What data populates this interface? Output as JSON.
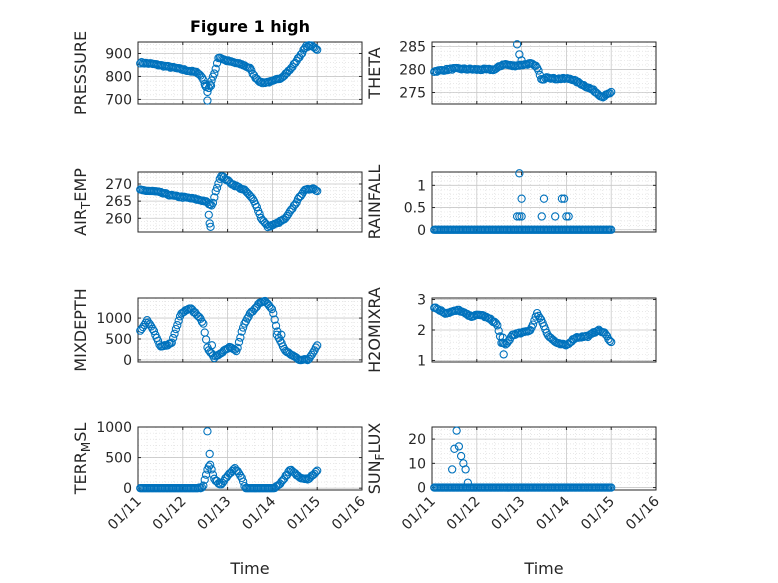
{
  "figure": {
    "title": "Figure 1 high",
    "xlabel": "Time",
    "marker_color": "#0072BD"
  },
  "chart_data": [
    {
      "id": "pressure",
      "type": "scatter",
      "title": "Figure 1 high",
      "ylabel": "PRESSURE",
      "ylim": [
        680,
        950
      ],
      "yticks": [
        700,
        800,
        900
      ],
      "ytick_labels": [
        "700",
        "800",
        "900"
      ],
      "xlim": [
        0,
        5
      ],
      "xticks": [
        0,
        1,
        2,
        3,
        4,
        5
      ],
      "show_xtick_labels": false,
      "knots": [
        [
          0.05,
          860
        ],
        [
          0.3,
          855
        ],
        [
          0.6,
          845
        ],
        [
          0.8,
          838
        ],
        [
          1.0,
          830
        ],
        [
          1.2,
          822
        ],
        [
          1.35,
          815
        ],
        [
          1.45,
          790
        ],
        [
          1.55,
          735
        ],
        [
          1.7,
          810
        ],
        [
          1.8,
          885
        ],
        [
          1.95,
          870
        ],
        [
          2.15,
          860
        ],
        [
          2.35,
          850
        ],
        [
          2.5,
          835
        ],
        [
          2.6,
          800
        ],
        [
          2.75,
          772
        ],
        [
          3.0,
          778
        ],
        [
          3.2,
          795
        ],
        [
          3.4,
          830
        ],
        [
          3.6,
          885
        ],
        [
          3.75,
          930
        ],
        [
          3.85,
          935
        ],
        [
          4.0,
          918
        ]
      ],
      "outliers": [
        [
          1.55,
          695
        ],
        [
          1.5,
          760
        ],
        [
          1.63,
          760
        ]
      ],
      "n": 130
    },
    {
      "id": "theta",
      "type": "scatter",
      "ylabel": "THETA",
      "ylim": [
        272.5,
        286
      ],
      "yticks": [
        275,
        280,
        285
      ],
      "ytick_labels": [
        "275",
        "280",
        "285"
      ],
      "xlim": [
        0,
        5
      ],
      "xticks": [
        0,
        1,
        2,
        3,
        4,
        5
      ],
      "show_xtick_labels": false,
      "knots": [
        [
          0.05,
          279.6
        ],
        [
          0.5,
          280.2
        ],
        [
          1.0,
          280.0
        ],
        [
          1.4,
          280.0
        ],
        [
          1.6,
          281.2
        ],
        [
          1.8,
          280.8
        ],
        [
          2.0,
          281.0
        ],
        [
          2.2,
          281.3
        ],
        [
          2.35,
          280.5
        ],
        [
          2.45,
          277.5
        ],
        [
          2.55,
          278.5
        ],
        [
          2.7,
          278.0
        ],
        [
          3.1,
          278.0
        ],
        [
          3.4,
          276.5
        ],
        [
          3.6,
          275.5
        ],
        [
          3.8,
          274.0
        ],
        [
          4.0,
          275.0
        ]
      ],
      "outliers": [
        [
          1.9,
          285.5
        ],
        [
          1.95,
          283.3
        ],
        [
          2.0,
          282.0
        ]
      ],
      "n": 130
    },
    {
      "id": "air_temp",
      "type": "scatter",
      "ylabel_main": "AIR",
      "ylabel_sub": "T",
      "ylabel_rest": "EMP",
      "ylim": [
        256,
        273.5
      ],
      "yticks": [
        260,
        265,
        270
      ],
      "ytick_labels": [
        "260",
        "265",
        "270"
      ],
      "xlim": [
        0,
        5
      ],
      "xticks": [
        0,
        1,
        2,
        3,
        4,
        5
      ],
      "show_xtick_labels": false,
      "knots": [
        [
          0.05,
          268.2
        ],
        [
          0.4,
          267.8
        ],
        [
          0.8,
          266.5
        ],
        [
          1.2,
          265.8
        ],
        [
          1.5,
          265.0
        ],
        [
          1.65,
          263.5
        ],
        [
          1.75,
          268.5
        ],
        [
          1.85,
          272.5
        ],
        [
          2.1,
          270.0
        ],
        [
          2.4,
          268.0
        ],
        [
          2.6,
          265.0
        ],
        [
          2.75,
          260.0
        ],
        [
          2.9,
          257.5
        ],
        [
          3.1,
          258.5
        ],
        [
          3.3,
          260.0
        ],
        [
          3.5,
          264.0
        ],
        [
          3.7,
          268.0
        ],
        [
          3.9,
          268.8
        ],
        [
          4.0,
          268.0
        ]
      ],
      "outliers": [
        [
          1.6,
          258.5
        ],
        [
          1.62,
          257.5
        ],
        [
          1.58,
          261.0
        ]
      ],
      "n": 130
    },
    {
      "id": "rainfall",
      "type": "scatter",
      "ylabel": "RAINFALL",
      "ylim": [
        -0.05,
        1.3
      ],
      "yticks": [
        0,
        0.5,
        1
      ],
      "ytick_labels": [
        "0",
        "0.5",
        "1"
      ],
      "xlim": [
        0,
        5
      ],
      "xticks": [
        0,
        1,
        2,
        3,
        4,
        5
      ],
      "show_xtick_labels": false,
      "knots": [
        [
          0.05,
          0
        ],
        [
          4.0,
          0
        ]
      ],
      "outliers": [
        [
          1.95,
          1.27
        ],
        [
          1.9,
          0.3
        ],
        [
          1.95,
          0.3
        ],
        [
          2.0,
          0.3
        ],
        [
          2.0,
          0.7
        ],
        [
          2.45,
          0.3
        ],
        [
          2.5,
          0.7
        ],
        [
          2.75,
          0.3
        ],
        [
          2.9,
          0.7
        ],
        [
          2.95,
          0.7
        ],
        [
          3.0,
          0.3
        ],
        [
          3.05,
          0.3
        ]
      ],
      "n": 130
    },
    {
      "id": "mixdepth",
      "type": "scatter",
      "ylabel": "MIXDEPTH",
      "ylim": [
        -50,
        1480
      ],
      "yticks": [
        0,
        500,
        1000
      ],
      "ytick_labels": [
        "0",
        "500",
        "1000"
      ],
      "xlim": [
        0,
        5
      ],
      "xticks": [
        0,
        1,
        2,
        3,
        4,
        5
      ],
      "show_xtick_labels": false,
      "knots": [
        [
          0.05,
          700
        ],
        [
          0.2,
          950
        ],
        [
          0.35,
          700
        ],
        [
          0.5,
          300
        ],
        [
          0.75,
          400
        ],
        [
          0.95,
          1100
        ],
        [
          1.15,
          1250
        ],
        [
          1.3,
          1100
        ],
        [
          1.45,
          900
        ],
        [
          1.55,
          300
        ],
        [
          1.7,
          50
        ],
        [
          1.9,
          200
        ],
        [
          2.05,
          300
        ],
        [
          2.2,
          200
        ],
        [
          2.35,
          800
        ],
        [
          2.5,
          1100
        ],
        [
          2.7,
          1350
        ],
        [
          2.85,
          1400
        ],
        [
          3.0,
          1200
        ],
        [
          3.15,
          500
        ],
        [
          3.3,
          200
        ],
        [
          3.6,
          10
        ],
        [
          3.8,
          0
        ],
        [
          4.0,
          350
        ]
      ],
      "outliers": [
        [
          1.65,
          350
        ],
        [
          3.1,
          600
        ],
        [
          3.2,
          600
        ]
      ],
      "n": 130
    },
    {
      "id": "h2omixra",
      "type": "scatter",
      "ylabel": "H2OMIXRA",
      "ylim": [
        0.95,
        3.05
      ],
      "yticks": [
        1,
        2,
        3
      ],
      "ytick_labels": [
        "1",
        "2",
        "3"
      ],
      "xlim": [
        0,
        5
      ],
      "xticks": [
        0,
        1,
        2,
        3,
        4,
        5
      ],
      "show_xtick_labels": false,
      "knots": [
        [
          0.05,
          2.75
        ],
        [
          0.3,
          2.55
        ],
        [
          0.6,
          2.65
        ],
        [
          0.85,
          2.45
        ],
        [
          1.1,
          2.5
        ],
        [
          1.3,
          2.35
        ],
        [
          1.45,
          2.2
        ],
        [
          1.55,
          1.6
        ],
        [
          1.65,
          1.5
        ],
        [
          1.8,
          1.85
        ],
        [
          2.0,
          1.9
        ],
        [
          2.2,
          2.0
        ],
        [
          2.35,
          2.55
        ],
        [
          2.45,
          2.3
        ],
        [
          2.6,
          1.8
        ],
        [
          2.8,
          1.55
        ],
        [
          3.0,
          1.5
        ],
        [
          3.2,
          1.75
        ],
        [
          3.5,
          1.8
        ],
        [
          3.7,
          2.0
        ],
        [
          3.85,
          1.9
        ],
        [
          4.0,
          1.6
        ]
      ],
      "outliers": [
        [
          1.6,
          1.2
        ],
        [
          1.58,
          1.75
        ]
      ],
      "n": 130
    },
    {
      "id": "terr_msl",
      "type": "scatter",
      "ylabel_main": "TERR",
      "ylabel_sub": "M",
      "ylabel_rest": "SL",
      "ylim": [
        -30,
        1000
      ],
      "yticks": [
        0,
        500,
        1000
      ],
      "ytick_labels": [
        "0",
        "500",
        "1000"
      ],
      "xlim": [
        0,
        5
      ],
      "xticks": [
        0,
        1,
        2,
        3,
        4,
        5
      ],
      "xtick_labels": [
        "01/11",
        "01/12",
        "01/13",
        "01/14",
        "01/15",
        "01/16"
      ],
      "show_xtick_labels": true,
      "knots": [
        [
          0.05,
          0
        ],
        [
          1.35,
          0
        ],
        [
          1.45,
          20
        ],
        [
          1.55,
          300
        ],
        [
          1.6,
          400
        ],
        [
          1.7,
          150
        ],
        [
          1.85,
          50
        ],
        [
          2.0,
          200
        ],
        [
          2.15,
          330
        ],
        [
          2.3,
          200
        ],
        [
          2.4,
          0
        ],
        [
          3.05,
          0
        ],
        [
          3.2,
          100
        ],
        [
          3.4,
          300
        ],
        [
          3.6,
          180
        ],
        [
          3.8,
          150
        ],
        [
          4.0,
          280
        ]
      ],
      "outliers": [
        [
          1.55,
          930
        ],
        [
          1.6,
          560
        ]
      ],
      "n": 130
    },
    {
      "id": "sun_flux",
      "type": "scatter",
      "ylabel_main": "SUN",
      "ylabel_sub": "F",
      "ylabel_rest": "LUX",
      "ylim": [
        -1,
        25
      ],
      "yticks": [
        0,
        10,
        20
      ],
      "ytick_labels": [
        "0",
        "10",
        "20"
      ],
      "xlim": [
        0,
        5
      ],
      "xticks": [
        0,
        1,
        2,
        3,
        4,
        5
      ],
      "xtick_labels": [
        "01/11",
        "01/12",
        "01/13",
        "01/14",
        "01/15",
        "01/16"
      ],
      "show_xtick_labels": true,
      "knots": [
        [
          0.05,
          0
        ],
        [
          4.0,
          0
        ]
      ],
      "outliers": [
        [
          0.45,
          7.5
        ],
        [
          0.5,
          16
        ],
        [
          0.55,
          23.5
        ],
        [
          0.6,
          17
        ],
        [
          0.65,
          13
        ],
        [
          0.7,
          10
        ],
        [
          0.75,
          7.5
        ],
        [
          0.8,
          2
        ]
      ],
      "n": 130
    }
  ]
}
